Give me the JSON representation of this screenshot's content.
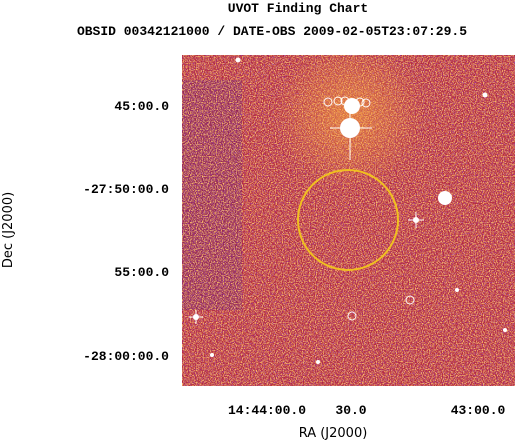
{
  "header": {
    "title": "UVOT Finding Chart",
    "subtitle": "OBSID 00342121000 / DATE-OBS 2009-02-05T23:07:29.5"
  },
  "x_axis": {
    "label": "RA (J2000)",
    "tick_labels": [
      "14:44:00.0",
      "30.0",
      "43:00.0"
    ]
  },
  "y_axis": {
    "label": "Dec (J2000)",
    "tick_labels": [
      "45:00.0",
      "-27:50:00.0",
      "55:00.0",
      "-28:00:00.0"
    ]
  }
}
